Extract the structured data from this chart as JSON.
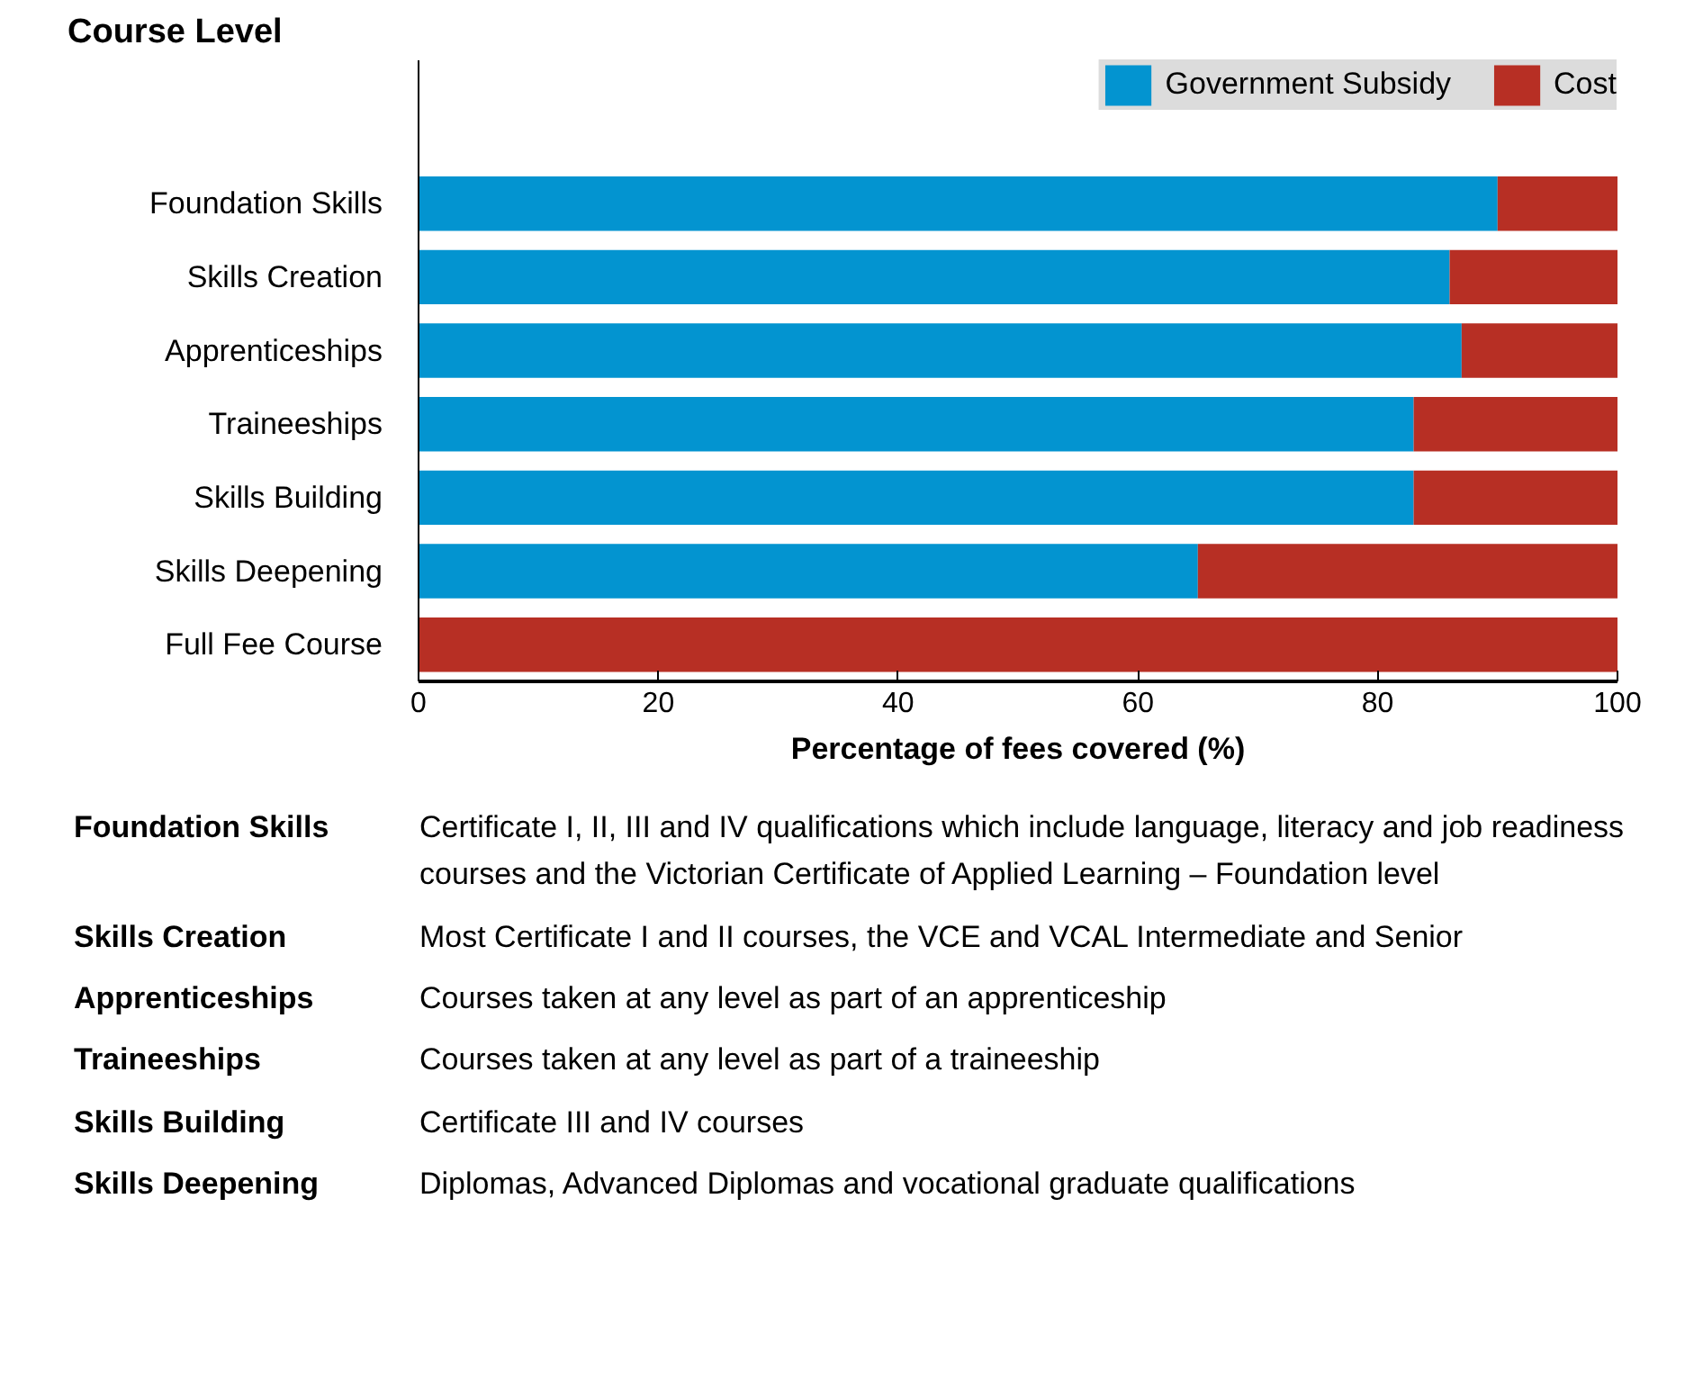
{
  "chart_data": {
    "type": "bar",
    "orientation": "horizontal",
    "stacked": true,
    "ylabel": "Course Level",
    "xlabel": "Percentage of fees covered (%)",
    "categories": [
      "Foundation Skills",
      "Skills Creation",
      "Apprenticeships",
      "Traineeships",
      "Skills Building",
      "Skills Deepening",
      "Full Fee Course"
    ],
    "series": [
      {
        "name": "Government Subsidy",
        "color": "#0394d0",
        "values": [
          90,
          86,
          87,
          83,
          83,
          65,
          0
        ]
      },
      {
        "name": "Cost",
        "color": "#b72f24",
        "values": [
          10,
          14,
          13,
          17,
          17,
          35,
          100
        ]
      }
    ],
    "xlim": [
      0,
      100
    ],
    "xticks": [
      0,
      20,
      40,
      60,
      80,
      100
    ],
    "grid": false,
    "legend": "top right",
    "annotations": [
      "Foundation Skills",
      "Certificate I, II, III and  IV qualifications which include language, literacy and job readiness courses and the Victorian Certificate of Applied Learning – Foundation level",
      "Skills Creation",
      "Most Certificate I and II courses, the VCE and VCAL Intermediate and Senior",
      "Apprenticeships",
      "Courses taken at any level as part of an apprenticeship",
      "Traineeships",
      "Courses taken at any level as part of a traineeship",
      "Skills Building",
      "Certificate III and IV courses",
      "Skills Deepening",
      "Diplomas, Advanced Diplomas and vocational graduate qualifications"
    ]
  }
}
